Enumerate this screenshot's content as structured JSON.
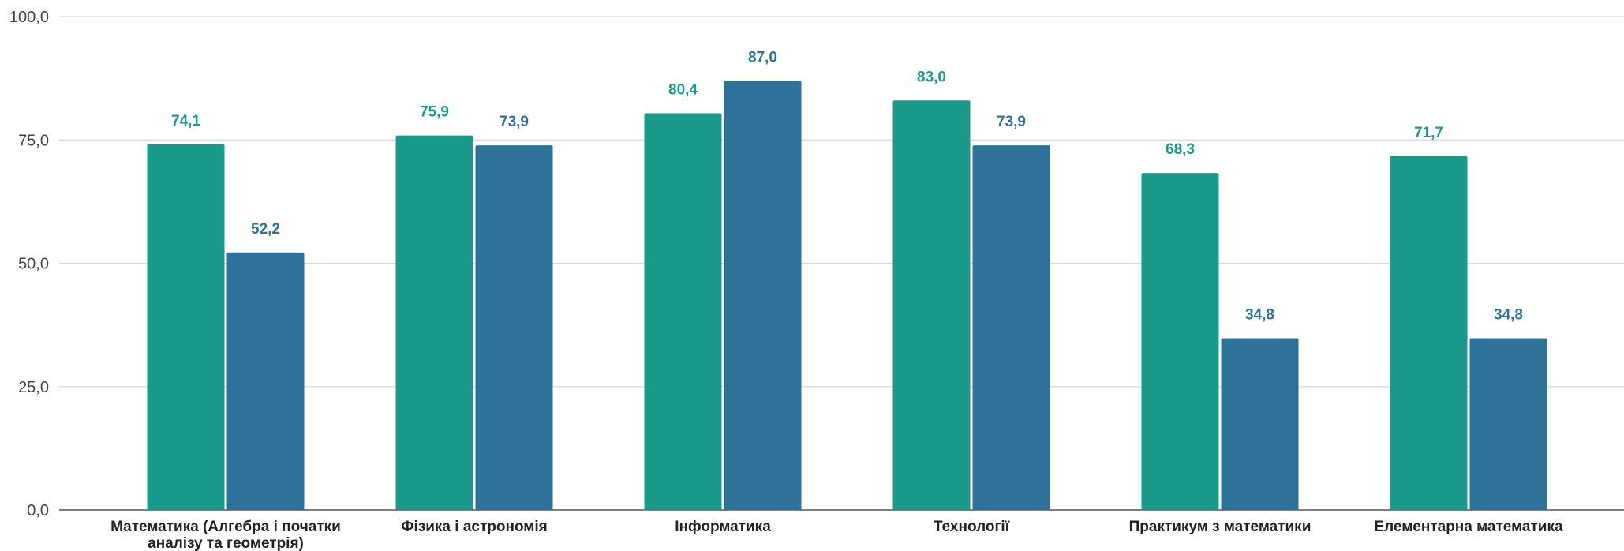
{
  "chart_data": {
    "type": "bar",
    "categories": [
      [
        "Математика (Алгебра і початки",
        "аналізу та геометрія)"
      ],
      [
        "Фізика і астрономія"
      ],
      [
        "Інформатика"
      ],
      [
        "Технології"
      ],
      [
        "Практикум з математики"
      ],
      [
        "Елементарна математика"
      ]
    ],
    "series": [
      {
        "color": "#1a9a8a",
        "values": [
          74.1,
          75.9,
          80.4,
          83.0,
          68.3,
          71.7
        ],
        "labels": [
          "74,1",
          "75,9",
          "80,4",
          "83,0",
          "68,3",
          "71,7"
        ]
      },
      {
        "color": "#2e7299",
        "values": [
          52.2,
          73.9,
          87.0,
          73.9,
          34.8,
          34.8
        ],
        "labels": [
          "52,2",
          "73,9",
          "87,0",
          "73,9",
          "34,8",
          "34,8"
        ]
      }
    ],
    "y_ticks": [
      0,
      25,
      50,
      75,
      100
    ],
    "y_tick_labels": [
      "0,0",
      "25,0",
      "50,0",
      "75,0",
      "100,0"
    ],
    "ylim": [
      0,
      100
    ],
    "grid": true,
    "legend": "none",
    "title": "",
    "xlabel": "",
    "ylabel": ""
  }
}
